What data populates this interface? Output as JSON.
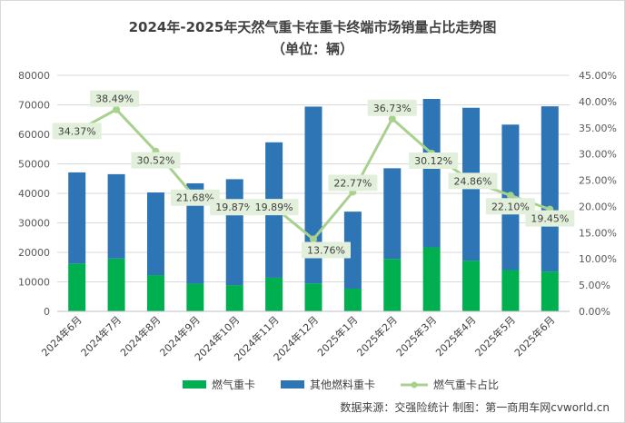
{
  "title": "2024年-2025年天然气重卡在重卡终端市场销量占比走势图",
  "subtitle": "（单位：辆）",
  "source": "数据来源：交强险统计  制图：第一商用车网cvworld.cn",
  "colors": {
    "gas": "#00b050",
    "other": "#2e75b6",
    "share": "#a9d18e",
    "label_bg": "#e2efda",
    "grid": "#d9d9d9"
  },
  "chart_data": {
    "type": "bar",
    "stacked": true,
    "categories": [
      "2024年6月",
      "2024年7月",
      "2024年8月",
      "2024年9月",
      "2024年10月",
      "2024年11月",
      "2024年12月",
      "2025年1月",
      "2025年2月",
      "2025年3月",
      "2025年4月",
      "2025年5月",
      "2025年6月"
    ],
    "series": [
      {
        "name": "燃气重卡",
        "values": [
          16200,
          17900,
          12300,
          9400,
          8900,
          11400,
          9500,
          7700,
          17800,
          21700,
          17200,
          14000,
          13500
        ]
      },
      {
        "name": "其他燃料重卡",
        "values": [
          30900,
          28600,
          28000,
          34000,
          35900,
          45900,
          59900,
          26100,
          30700,
          50300,
          51800,
          49300,
          56000
        ]
      }
    ],
    "line_series": {
      "name": "燃气重卡占比",
      "values": [
        34.37,
        38.49,
        30.52,
        21.68,
        19.87,
        19.89,
        13.76,
        22.77,
        36.73,
        30.12,
        24.86,
        22.1,
        19.45
      ],
      "labels": [
        "34.37%",
        "38.49%",
        "30.52%",
        "21.68%",
        "19.87%",
        "19.89%",
        "13.76%",
        "22.77%",
        "36.73%",
        "30.12%",
        "24.86%",
        "22.10%",
        "19.45%"
      ]
    },
    "y_left": {
      "min": 0,
      "max": 80000,
      "ticks": [
        "0",
        "10000",
        "20000",
        "30000",
        "40000",
        "50000",
        "60000",
        "70000",
        "80000"
      ]
    },
    "y_right": {
      "min": 0,
      "max": 45,
      "ticks": [
        "0.00%",
        "5.00%",
        "10.00%",
        "15.00%",
        "20.00%",
        "25.00%",
        "30.00%",
        "35.00%",
        "40.00%",
        "45.00%"
      ]
    },
    "grid": true,
    "legend_position": "bottom"
  }
}
